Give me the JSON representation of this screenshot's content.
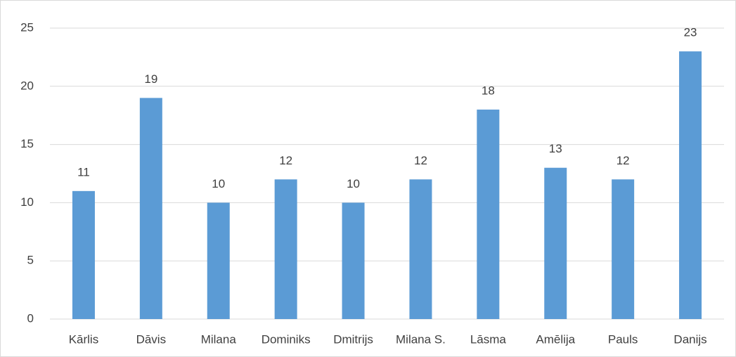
{
  "chart_data": {
    "type": "bar",
    "categories": [
      "Kārlis",
      "Dāvis",
      "Milana",
      "Dominiks",
      "Dmitrijs",
      "Milana S.",
      "Lāsma",
      "Amēlija",
      "Pauls",
      "Danijs"
    ],
    "values": [
      11,
      19,
      10,
      12,
      10,
      12,
      18,
      13,
      12,
      23
    ],
    "color": "#5b9bd5",
    "ylim": [
      0,
      25
    ],
    "yticks": [
      0,
      5,
      10,
      15,
      20,
      25
    ],
    "grid": true,
    "data_labels": true
  }
}
